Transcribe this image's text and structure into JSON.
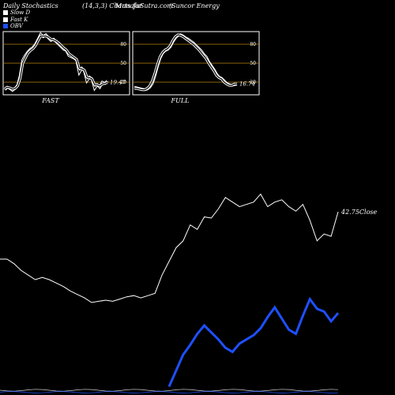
{
  "header": {
    "left": "Daily Stochastics",
    "mid": "(14,3,3) Charts for",
    "site": "MunafaSutra.com",
    "right": "(Suncor Energy"
  },
  "legend": [
    {
      "label": "Slow  D",
      "color": "#ffffff"
    },
    {
      "label": "Fast K",
      "color": "#ffffff"
    },
    {
      "label": "OBV",
      "color": "#1e50ff"
    }
  ],
  "chart_data": [
    {
      "type": "line",
      "title": "FAST",
      "ylim": [
        0,
        100
      ],
      "level_lines": [
        20,
        50,
        80
      ],
      "tick_labels": [
        "80",
        "50",
        "20"
      ],
      "last_label": "19.47",
      "series": [
        {
          "values": [
            8,
            12,
            10,
            7,
            10,
            15,
            30,
            55,
            62,
            68,
            72,
            75,
            80,
            88,
            96,
            92,
            95,
            90,
            86,
            88,
            84,
            80,
            76,
            72,
            70,
            62,
            60,
            58,
            55,
            35,
            42,
            38,
            22,
            28,
            25,
            10,
            16,
            12,
            20,
            18,
            22
          ]
        },
        {
          "values": [
            10,
            12,
            11,
            9,
            10,
            14,
            26,
            50,
            58,
            66,
            70,
            73,
            78,
            86,
            93,
            93,
            93,
            91,
            88,
            87,
            85,
            82,
            78,
            74,
            71,
            65,
            62,
            59,
            56,
            42,
            41,
            39,
            28,
            27,
            25,
            16,
            16,
            14,
            17,
            18,
            19.47
          ]
        }
      ]
    },
    {
      "type": "line",
      "title": "FULL",
      "ylim": [
        0,
        100
      ],
      "level_lines": [
        20,
        50,
        80
      ],
      "tick_labels": [
        "80",
        "50",
        "20"
      ],
      "last_label": "16.74",
      "series": [
        {
          "values": [
            12,
            11,
            10,
            9,
            8,
            9,
            12,
            18,
            30,
            45,
            58,
            66,
            70,
            72,
            76,
            84,
            90,
            94,
            95,
            93,
            90,
            88,
            85,
            82,
            78,
            74,
            70,
            64,
            60,
            52,
            46,
            40,
            33,
            28,
            26,
            22,
            18,
            16,
            15,
            16,
            16.74
          ]
        },
        {
          "values": [
            10,
            10,
            9,
            8,
            8,
            10,
            14,
            22,
            34,
            48,
            60,
            67,
            71,
            73,
            78,
            86,
            92,
            95,
            94,
            92,
            89,
            86,
            83,
            80,
            76,
            72,
            67,
            62,
            57,
            50,
            44,
            38,
            31,
            27,
            25,
            20,
            17,
            15,
            15,
            17,
            17
          ]
        }
      ]
    },
    {
      "type": "line",
      "title": "",
      "last_label": "42.75",
      "label_suffix": "Close",
      "series": [
        {
          "color": "#ffffff",
          "values": [
            38.6,
            38.6,
            38.2,
            37.6,
            37.2,
            36.8,
            37.0,
            36.8,
            36.5,
            36.2,
            35.8,
            35.5,
            35.2,
            34.8,
            34.9,
            35.0,
            34.9,
            35.1,
            35.3,
            35.4,
            35.2,
            35.4,
            35.6,
            37.2,
            38.4,
            39.6,
            40.2,
            41.6,
            41.2,
            42.3,
            42.2,
            43.0,
            44.0,
            43.6,
            43.2,
            43.4,
            43.6,
            44.3,
            43.2,
            43.6,
            43.8,
            43.2,
            42.8,
            43.4,
            42.0,
            40.2,
            40.8,
            40.6,
            42.75
          ]
        },
        {
          "color": "#1e50ff",
          "values": [
            null,
            null,
            null,
            null,
            null,
            null,
            null,
            null,
            null,
            null,
            null,
            null,
            null,
            null,
            null,
            null,
            null,
            null,
            null,
            null,
            null,
            null,
            null,
            null,
            12,
            35,
            58,
            72,
            88,
            100,
            90,
            80,
            68,
            62,
            74,
            80,
            86,
            96,
            112,
            126,
            110,
            94,
            88,
            114,
            138,
            124,
            120,
            106,
            118
          ]
        }
      ]
    }
  ]
}
